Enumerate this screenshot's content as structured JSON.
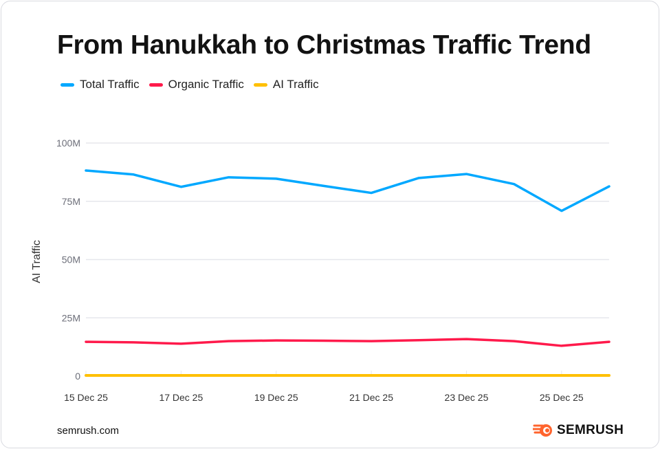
{
  "chart_data": {
    "type": "line",
    "title": "From Hanukkah to Christmas Traffic Trend",
    "ylabel": "AI Traffic",
    "xlabel": "",
    "x": [
      "15 Dec 25",
      "16 Dec 25",
      "17 Dec 25",
      "18 Dec 25",
      "19 Dec 25",
      "20 Dec 25",
      "21 Dec 25",
      "22 Dec 25",
      "23 Dec 25",
      "24 Dec 25",
      "25 Dec 25",
      "26 Dec 25"
    ],
    "xticks": [
      "15 Dec 25",
      "17 Dec 25",
      "19 Dec 25",
      "21 Dec 25",
      "23 Dec 25",
      "25 Dec 25"
    ],
    "yticks": [
      0,
      25,
      50,
      75,
      100
    ],
    "ytick_labels": [
      "0",
      "25M",
      "50M",
      "75M",
      "100M"
    ],
    "ylim": [
      0,
      100
    ],
    "units": "M",
    "grid": true,
    "legend": "top-left",
    "series": [
      {
        "name": "Total Traffic",
        "color": "#00a8ff",
        "values": [
          88.2,
          86.5,
          81.2,
          85.3,
          84.7,
          81.6,
          78.6,
          85.0,
          86.7,
          82.4,
          70.9,
          81.4
        ]
      },
      {
        "name": "Organic Traffic",
        "color": "#ff1a4b",
        "values": [
          14.7,
          14.5,
          13.9,
          15.0,
          15.3,
          15.2,
          15.0,
          15.4,
          15.9,
          15.0,
          13.0,
          14.7
        ]
      },
      {
        "name": "AI Traffic",
        "color": "#ffc000",
        "values": [
          0.3,
          0.3,
          0.3,
          0.3,
          0.3,
          0.3,
          0.3,
          0.3,
          0.3,
          0.3,
          0.3,
          0.3
        ]
      }
    ]
  },
  "footer": {
    "source": "semrush.com",
    "brand": "SEMRUSH",
    "brand_color": "#ff642d"
  }
}
